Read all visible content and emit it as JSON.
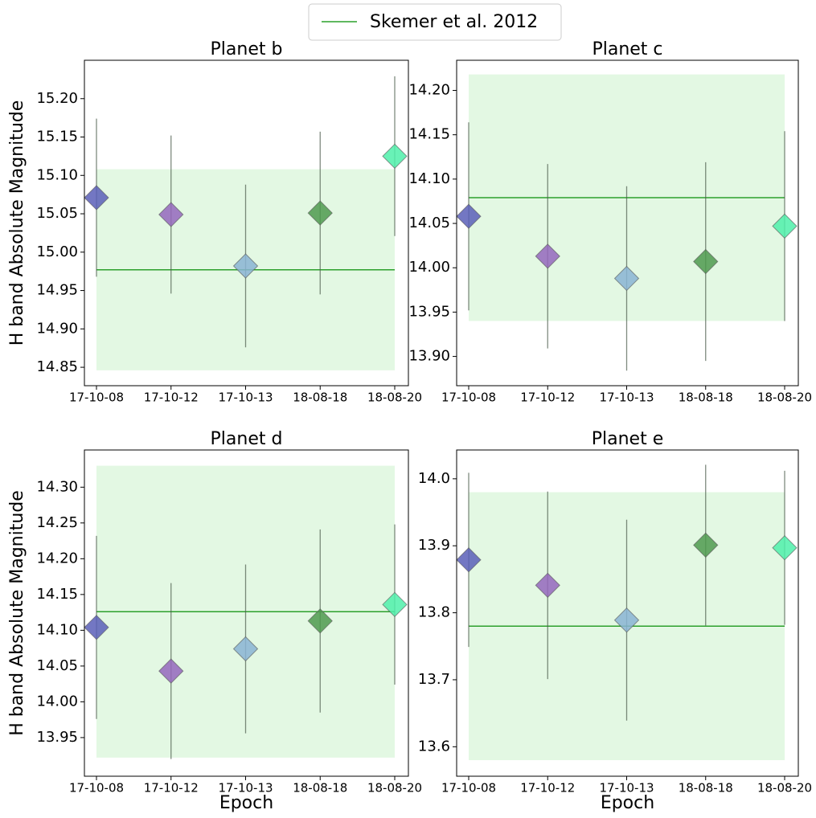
{
  "legend": {
    "label": "Skemer et al. 2012",
    "color": "#2ca02c"
  },
  "point_colors": [
    "#5b5fb8",
    "#9467bd",
    "#8ab4d4",
    "#4f9a4f",
    "#4ff0aa"
  ],
  "chart_data": [
    {
      "type": "errorbar",
      "title": "Planet b",
      "ylabel": "H band Absolute Magnitude",
      "categories": [
        "17-10-08",
        "17-10-12",
        "17-10-13",
        "18-08-18",
        "18-08-20"
      ],
      "values": [
        15.071,
        15.049,
        14.982,
        15.051,
        15.125
      ],
      "errors": [
        0.103,
        0.103,
        0.106,
        0.106,
        0.104
      ],
      "reference_value": 14.977,
      "reference_error": 0.131,
      "ylim": [
        14.826,
        15.25
      ],
      "yticks": [
        14.85,
        {
          "value": 14.9,
          "label": "14.90"
        },
        14.95,
        {
          "value": 15.0,
          "label": "15.00"
        },
        15.05,
        {
          "value": 15.1,
          "label": "15.10"
        },
        15.15,
        {
          "value": 15.2,
          "label": "15.20"
        }
      ]
    },
    {
      "type": "errorbar",
      "title": "Planet c",
      "categories": [
        "17-10-08",
        "17-10-12",
        "17-10-13",
        "18-08-18",
        "18-08-20"
      ],
      "values": [
        14.058,
        14.013,
        13.988,
        14.007,
        14.047
      ],
      "errors": [
        0.106,
        0.104,
        0.104,
        0.112,
        0.107
      ],
      "reference_value": 14.079,
      "reference_error": 0.139,
      "ylim": [
        13.867,
        14.234
      ],
      "yticks": [
        {
          "value": 13.9,
          "label": "13.90"
        },
        13.95,
        {
          "value": 14.0,
          "label": "14.00"
        },
        14.05,
        {
          "value": 14.1,
          "label": "14.10"
        },
        14.15,
        {
          "value": 14.2,
          "label": "14.20"
        }
      ]
    },
    {
      "type": "errorbar",
      "title": "Planet d",
      "ylabel": "H band Absolute Magnitude",
      "xlabel": "Epoch",
      "categories": [
        "17-10-08",
        "17-10-12",
        "17-10-13",
        "18-08-18",
        "18-08-20"
      ],
      "values": [
        14.104,
        14.043,
        14.074,
        14.113,
        14.136
      ],
      "errors": [
        0.128,
        0.123,
        0.118,
        0.128,
        0.112
      ],
      "reference_value": 14.126,
      "reference_error": 0.204,
      "ylim": [
        13.896,
        14.352
      ],
      "yticks": [
        13.95,
        {
          "value": 14.0,
          "label": "14.00"
        },
        14.05,
        {
          "value": 14.1,
          "label": "14.10"
        },
        14.15,
        {
          "value": 14.2,
          "label": "14.20"
        },
        14.25,
        {
          "value": 14.3,
          "label": "14.30"
        }
      ]
    },
    {
      "type": "errorbar",
      "title": "Planet e",
      "xlabel": "Epoch",
      "categories": [
        "17-10-08",
        "17-10-12",
        "17-10-13",
        "18-08-18",
        "18-08-20"
      ],
      "values": [
        13.879,
        13.841,
        13.789,
        13.901,
        13.897
      ],
      "errors": [
        0.13,
        0.14,
        0.15,
        0.12,
        0.115
      ],
      "reference_value": 13.78,
      "reference_error": 0.2,
      "ylim": [
        13.556,
        14.043
      ],
      "yticks": [
        13.6,
        13.7,
        13.8,
        13.9,
        {
          "value": 14.0,
          "label": "14.0"
        }
      ]
    }
  ]
}
